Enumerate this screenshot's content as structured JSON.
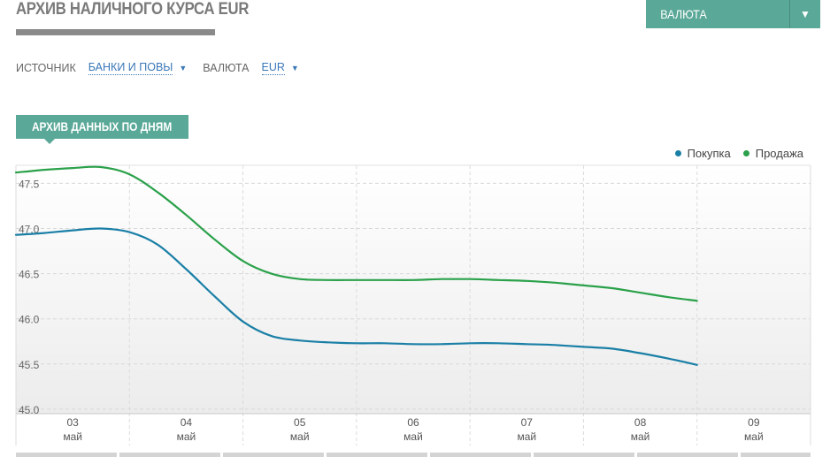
{
  "header": {
    "title": "АРХИВ НАЛИЧНОГО КУРСА EUR",
    "currency_button": "ВАЛЮТА",
    "currency_button_arrow": "▼"
  },
  "filters": {
    "source_label": "ИСТОЧНИК",
    "source_value": "БАНКИ И ПОВЫ",
    "currency_label": "ВАЛЮТА",
    "currency_value": "EUR",
    "arrow": "▼"
  },
  "archive_tab": {
    "label": "АРХИВ ДАННЫХ ПО ДНЯМ"
  },
  "colors": {
    "accent": "#5aa897",
    "buy": "#1a7fa6",
    "sell": "#2aa14a"
  },
  "chart_data": {
    "type": "line",
    "x_labels": [
      {
        "day": "03",
        "month": "май"
      },
      {
        "day": "04",
        "month": "май"
      },
      {
        "day": "05",
        "month": "май"
      },
      {
        "day": "06",
        "month": "май"
      },
      {
        "day": "07",
        "month": "май"
      },
      {
        "day": "08",
        "month": "май"
      },
      {
        "day": "09",
        "month": "май"
      }
    ],
    "y_ticks": [
      "45.0",
      "45.5",
      "46.0",
      "46.5",
      "47.0",
      "47.5"
    ],
    "ylim": [
      44.95,
      47.7
    ],
    "x_range": [
      -0.5,
      6.5
    ],
    "grid": true,
    "legend_position": "top-right",
    "series": [
      {
        "name": "Покупка",
        "color": "#1a7fa6",
        "points": [
          [
            -0.5,
            46.93
          ],
          [
            -0.25,
            46.95
          ],
          [
            0,
            46.98
          ],
          [
            0.25,
            47.0
          ],
          [
            0.5,
            46.96
          ],
          [
            0.75,
            46.82
          ],
          [
            1,
            46.55
          ],
          [
            1.25,
            46.25
          ],
          [
            1.5,
            45.97
          ],
          [
            1.75,
            45.81
          ],
          [
            2,
            45.76
          ],
          [
            2.25,
            45.74
          ],
          [
            2.5,
            45.73
          ],
          [
            2.75,
            45.73
          ],
          [
            3,
            45.72
          ],
          [
            3.25,
            45.72
          ],
          [
            3.5,
            45.73
          ],
          [
            3.75,
            45.73
          ],
          [
            4,
            45.72
          ],
          [
            4.25,
            45.71
          ],
          [
            4.5,
            45.69
          ],
          [
            4.75,
            45.67
          ],
          [
            5,
            45.62
          ],
          [
            5.25,
            45.56
          ],
          [
            5.5,
            45.49
          ],
          [
            5.5,
            45.46
          ]
        ]
      },
      {
        "name": "Продажа",
        "color": "#2aa14a",
        "points": [
          [
            -0.5,
            47.62
          ],
          [
            -0.25,
            47.65
          ],
          [
            0,
            47.67
          ],
          [
            0.25,
            47.68
          ],
          [
            0.5,
            47.6
          ],
          [
            0.75,
            47.4
          ],
          [
            1,
            47.15
          ],
          [
            1.25,
            46.88
          ],
          [
            1.5,
            46.64
          ],
          [
            1.75,
            46.5
          ],
          [
            2,
            46.44
          ],
          [
            2.25,
            46.43
          ],
          [
            2.5,
            46.43
          ],
          [
            2.75,
            46.43
          ],
          [
            3,
            46.43
          ],
          [
            3.25,
            46.44
          ],
          [
            3.5,
            46.44
          ],
          [
            3.75,
            46.43
          ],
          [
            4,
            46.42
          ],
          [
            4.25,
            46.4
          ],
          [
            4.5,
            46.37
          ],
          [
            4.75,
            46.34
          ],
          [
            5,
            46.29
          ],
          [
            5.25,
            46.24
          ],
          [
            5.5,
            46.2
          ],
          [
            5.5,
            46.19
          ]
        ]
      }
    ]
  }
}
